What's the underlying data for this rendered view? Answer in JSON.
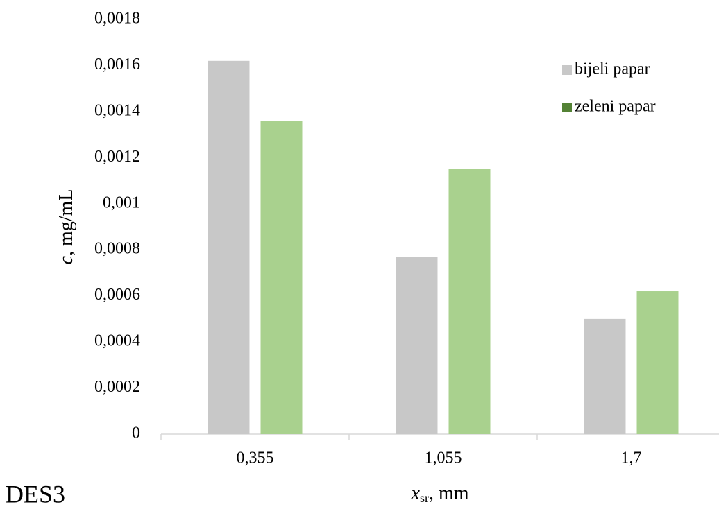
{
  "chart_data": {
    "type": "bar",
    "annotation": "DES3",
    "y_label": {
      "symbol": "c",
      "unit": ", mg/mL"
    },
    "x_label": {
      "symbol": "x",
      "subscript": "sr",
      "unit": ", mm"
    },
    "categories": [
      "0,355",
      "1,055",
      "1,7"
    ],
    "series": [
      {
        "name": "bijeli papar",
        "color": "#c8c8c8",
        "legend_color": "#c8c8c8",
        "values": [
          0.00162,
          0.00077,
          0.0005
        ]
      },
      {
        "name": "zeleni papar",
        "color": "#a9d18e",
        "legend_color": "#548235",
        "values": [
          0.00136,
          0.00115,
          0.00062
        ]
      }
    ],
    "ylim": [
      0,
      0.0018
    ],
    "yticks": [
      0,
      {
        "value": 0.0002,
        "label": "0,0002"
      },
      {
        "value": 0.0004,
        "label": "0,0004"
      },
      {
        "value": 0.0006,
        "label": "0,0006"
      },
      {
        "value": 0.0008,
        "label": "0,0008"
      },
      {
        "value": 0.001,
        "label": "0,001"
      },
      {
        "value": 0.0012,
        "label": "0,0012"
      },
      {
        "value": 0.0014,
        "label": "0,0014"
      },
      {
        "value": 0.0016,
        "label": "0,0016"
      },
      {
        "value": 0.0018,
        "label": "0,0018"
      }
    ],
    "grid": false,
    "legend": "top-right"
  }
}
